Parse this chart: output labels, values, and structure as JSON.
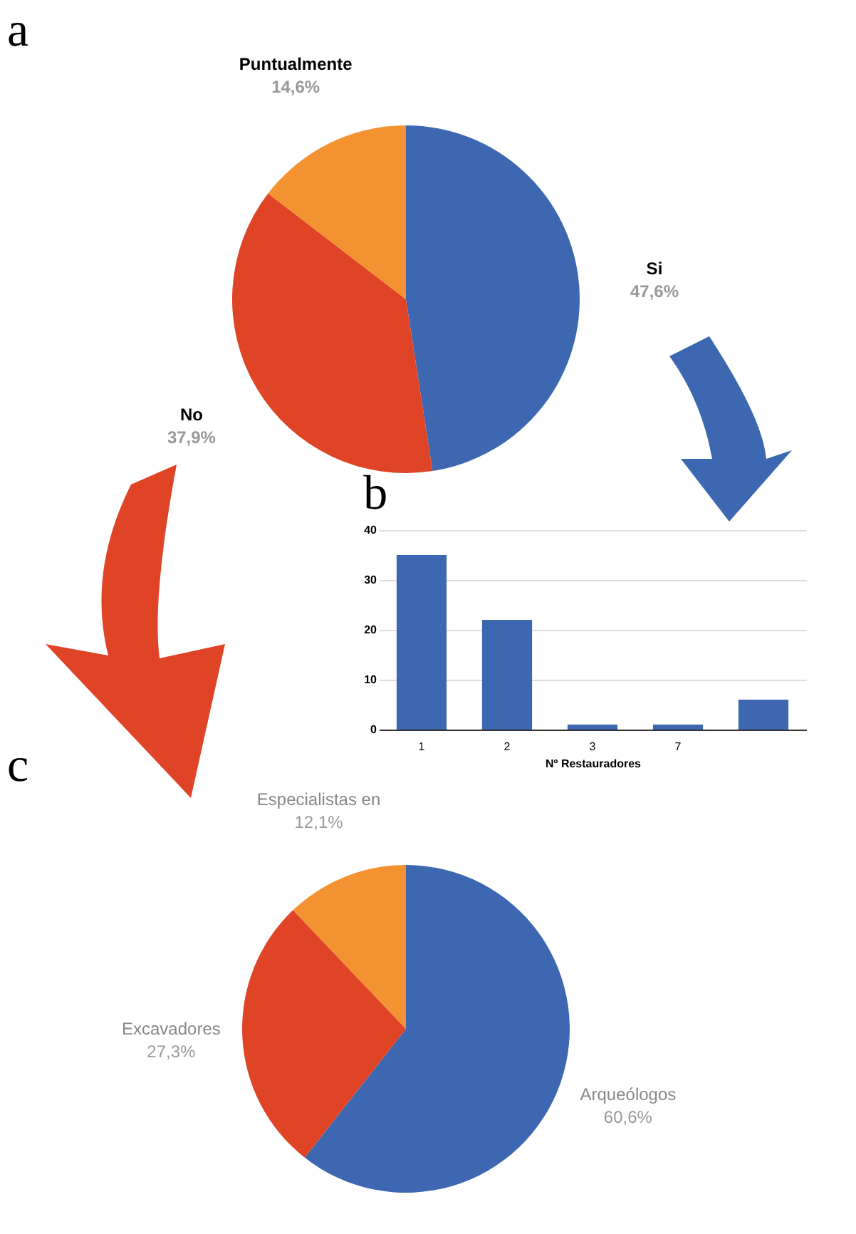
{
  "chart_data": [
    {
      "type": "pie",
      "title": "a",
      "categories": [
        "Si",
        "No",
        "Puntualmente"
      ],
      "values": [
        47.6,
        37.9,
        14.6
      ],
      "value_labels": [
        "47,6%",
        "37,9%",
        "14,6%"
      ],
      "colors": [
        "#3d67b1",
        "#e04426",
        "#f39230"
      ]
    },
    {
      "type": "bar",
      "title": "b",
      "categories": [
        "1",
        "2",
        "3",
        "7",
        null
      ],
      "values": [
        35,
        22,
        1,
        1,
        6
      ],
      "color": "#3d67b1",
      "xlabel": "Nº Restauradores",
      "ylim": [
        0,
        40
      ],
      "yticks": [
        0,
        10,
        20,
        30,
        40
      ],
      "grid": "y"
    },
    {
      "type": "pie",
      "title": "c",
      "categories": [
        "Arqueólogos",
        "Excavadores",
        "Especialistas en"
      ],
      "values": [
        60.6,
        27.3,
        12.1
      ],
      "value_labels": [
        "60,6%",
        "27,3%",
        "12,1%"
      ],
      "colors": [
        "#3d67b1",
        "#e04426",
        "#f39230"
      ]
    }
  ]
}
